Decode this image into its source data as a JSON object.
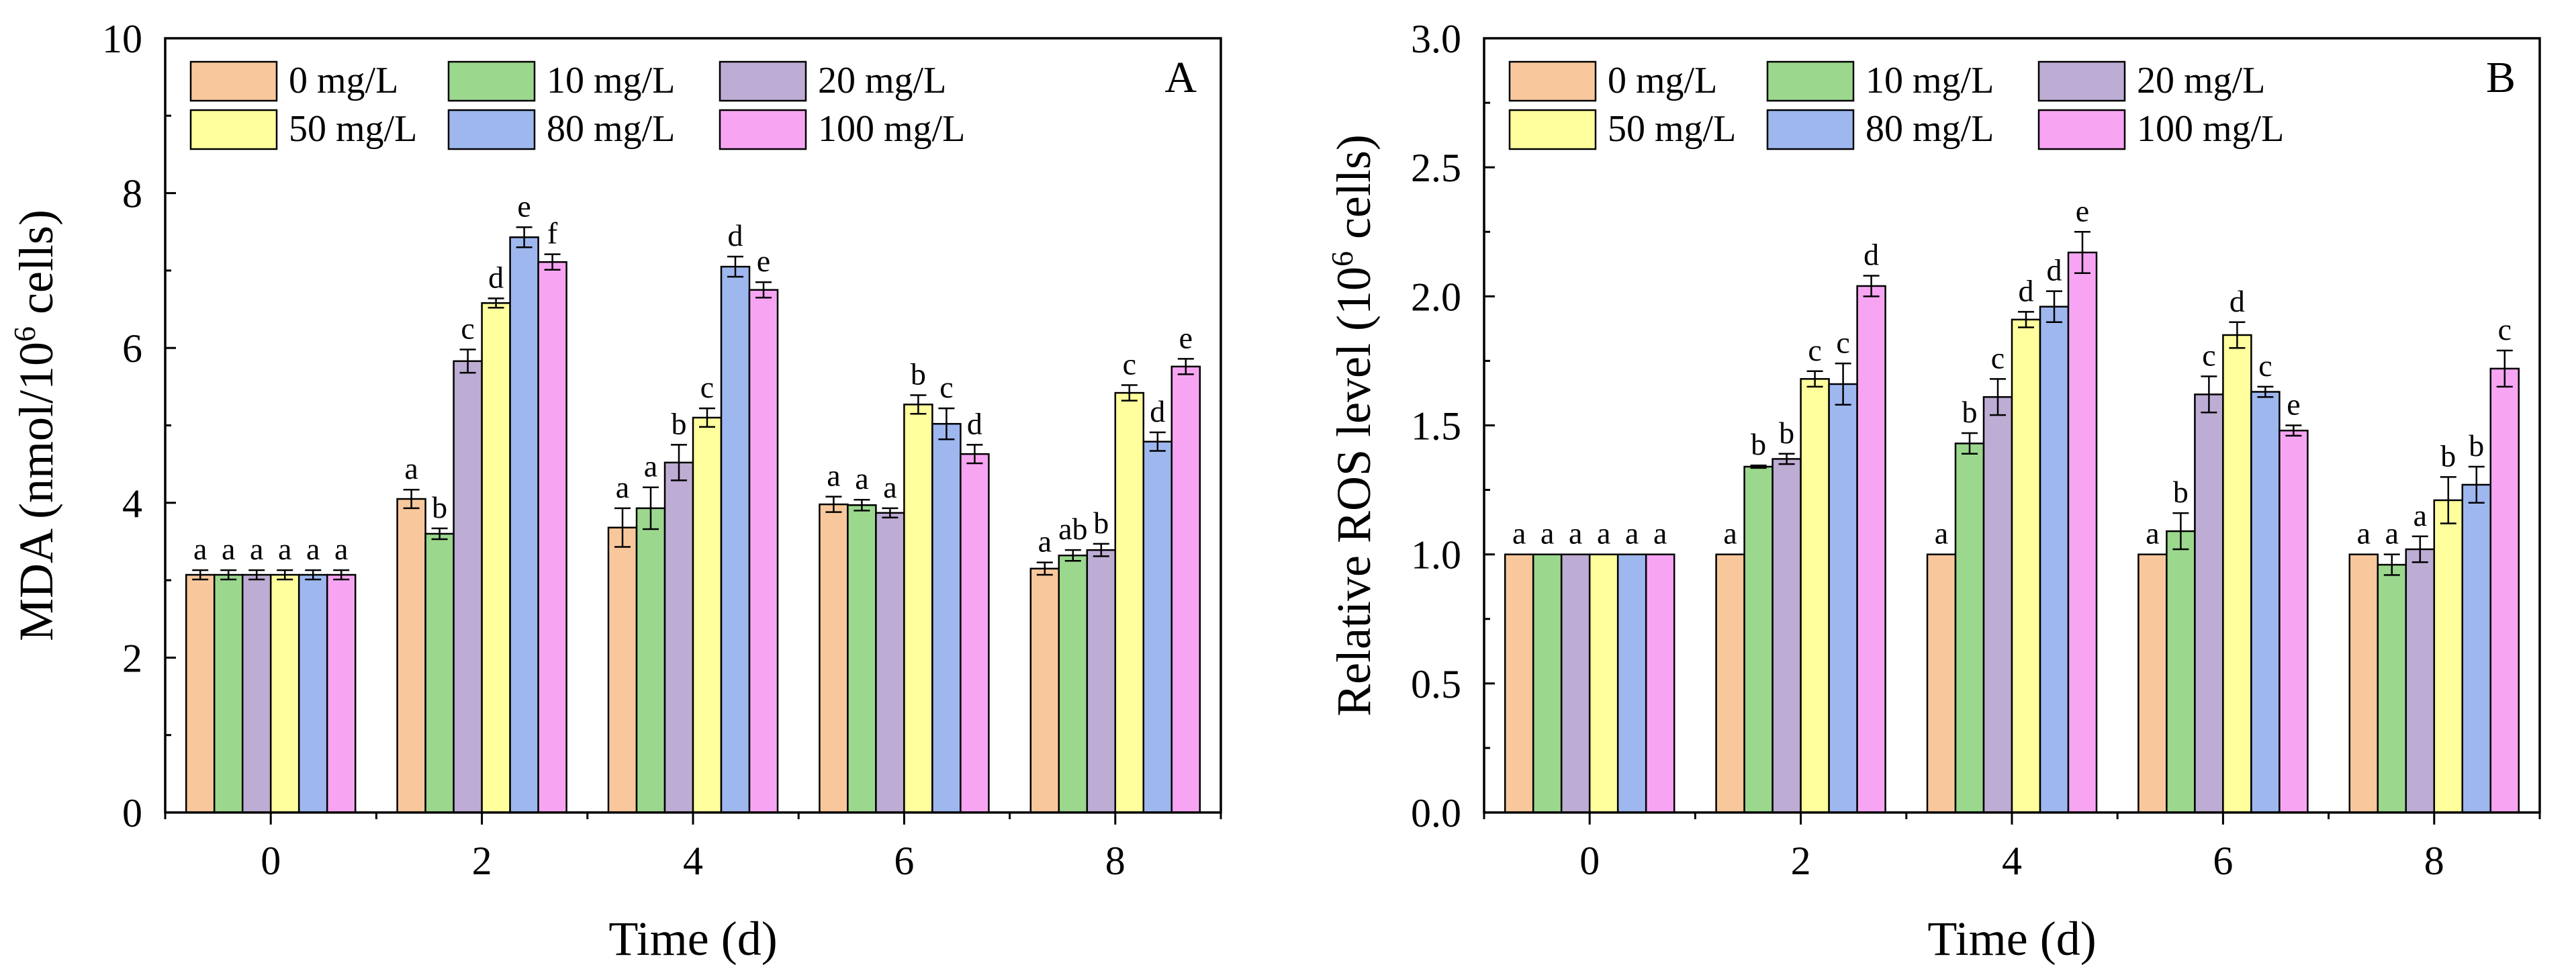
{
  "chart_data": [
    {
      "type": "bar",
      "panel": "A",
      "xlabel": "Time (d)",
      "ylabel": {
        "pre": "MDA (nmol/10",
        "sup": "6",
        "post": " cells)"
      },
      "ylim": [
        0,
        10
      ],
      "yticks": [
        "0",
        "2",
        "4",
        "6",
        "8",
        "10"
      ],
      "ytick_values": [
        0,
        2,
        4,
        6,
        8,
        10
      ],
      "categories": [
        "0",
        "2",
        "4",
        "6",
        "8"
      ],
      "legend_position": "top",
      "series": [
        {
          "name": "0 mg/L",
          "color": "#F8C89C",
          "values": [
            3.07,
            4.05,
            3.68,
            3.98,
            3.15
          ],
          "errors": [
            0.06,
            0.12,
            0.25,
            0.1,
            0.08
          ],
          "labels": [
            "a",
            "a",
            "a",
            "a",
            "a"
          ]
        },
        {
          "name": "10 mg/L",
          "color": "#9BD88E",
          "values": [
            3.07,
            3.6,
            3.93,
            3.97,
            3.32
          ],
          "errors": [
            0.06,
            0.07,
            0.27,
            0.07,
            0.07
          ],
          "labels": [
            "a",
            "b",
            "a",
            "a",
            "ab"
          ]
        },
        {
          "name": "20 mg/L",
          "color": "#BDACD3",
          "values": [
            3.07,
            5.83,
            4.52,
            3.87,
            3.39
          ],
          "errors": [
            0.06,
            0.15,
            0.23,
            0.06,
            0.08
          ],
          "labels": [
            "a",
            "c",
            "b",
            "a",
            "b"
          ]
        },
        {
          "name": "50 mg/L",
          "color": "#FFFF9E",
          "values": [
            3.07,
            6.58,
            5.1,
            5.27,
            5.42
          ],
          "errors": [
            0.06,
            0.06,
            0.12,
            0.12,
            0.1
          ],
          "labels": [
            "a",
            "d",
            "c",
            "b",
            "c"
          ]
        },
        {
          "name": "80 mg/L",
          "color": "#9EB7EF",
          "values": [
            3.07,
            7.43,
            7.05,
            5.02,
            4.79
          ],
          "errors": [
            0.06,
            0.13,
            0.13,
            0.2,
            0.12
          ],
          "labels": [
            "a",
            "e",
            "d",
            "c",
            "d"
          ]
        },
        {
          "name": "100 mg/L",
          "color": "#F7A5F3",
          "values": [
            3.07,
            7.11,
            6.75,
            4.63,
            5.76
          ],
          "errors": [
            0.06,
            0.1,
            0.1,
            0.12,
            0.1
          ],
          "labels": [
            "a",
            "f",
            "e",
            "d",
            "e"
          ]
        }
      ]
    },
    {
      "type": "bar",
      "panel": "B",
      "xlabel": "Time (d)",
      "ylabel": {
        "pre": "Relative ROS level (10",
        "sup": "6",
        "post": " cells)"
      },
      "ylim": [
        0,
        3
      ],
      "yticks": [
        "0.0",
        "0.5",
        "1.0",
        "1.5",
        "2.0",
        "2.5",
        "3.0"
      ],
      "ytick_values": [
        0,
        0.5,
        1,
        1.5,
        2,
        2.5,
        3
      ],
      "categories": [
        "0",
        "2",
        "4",
        "6",
        "8"
      ],
      "legend_position": "top",
      "series": [
        {
          "name": "0 mg/L",
          "color": "#F8C89C",
          "values": [
            1.0,
            1.0,
            1.0,
            1.0,
            1.0
          ],
          "errors": [
            0,
            0,
            0,
            0,
            0
          ],
          "labels": [
            "a",
            "a",
            "a",
            "a",
            "a"
          ]
        },
        {
          "name": "10 mg/L",
          "color": "#9BD88E",
          "values": [
            1.0,
            1.34,
            1.43,
            1.09,
            0.96
          ],
          "errors": [
            0,
            0.005,
            0.04,
            0.07,
            0.04
          ],
          "labels": [
            "a",
            "b",
            "b",
            "b",
            "a"
          ]
        },
        {
          "name": "20 mg/L",
          "color": "#BDACD3",
          "values": [
            1.0,
            1.37,
            1.61,
            1.62,
            1.02
          ],
          "errors": [
            0,
            0.02,
            0.07,
            0.07,
            0.05
          ],
          "labels": [
            "a",
            "b",
            "c",
            "c",
            "a"
          ]
        },
        {
          "name": "50 mg/L",
          "color": "#FFFF9E",
          "values": [
            1.0,
            1.68,
            1.91,
            1.85,
            1.21
          ],
          "errors": [
            0,
            0.03,
            0.03,
            0.05,
            0.09
          ],
          "labels": [
            "a",
            "c",
            "d",
            "d",
            "b"
          ]
        },
        {
          "name": "80 mg/L",
          "color": "#9EB7EF",
          "values": [
            1.0,
            1.66,
            1.96,
            1.63,
            1.27
          ],
          "errors": [
            0,
            0.08,
            0.06,
            0.02,
            0.07
          ],
          "labels": [
            "a",
            "c",
            "d",
            "c",
            "b"
          ]
        },
        {
          "name": "100 mg/L",
          "color": "#F7A5F3",
          "values": [
            1.0,
            2.04,
            2.17,
            1.48,
            1.72
          ],
          "errors": [
            0,
            0.04,
            0.08,
            0.02,
            0.07
          ],
          "labels": [
            "a",
            "d",
            "e",
            "e",
            "c"
          ]
        }
      ]
    }
  ]
}
